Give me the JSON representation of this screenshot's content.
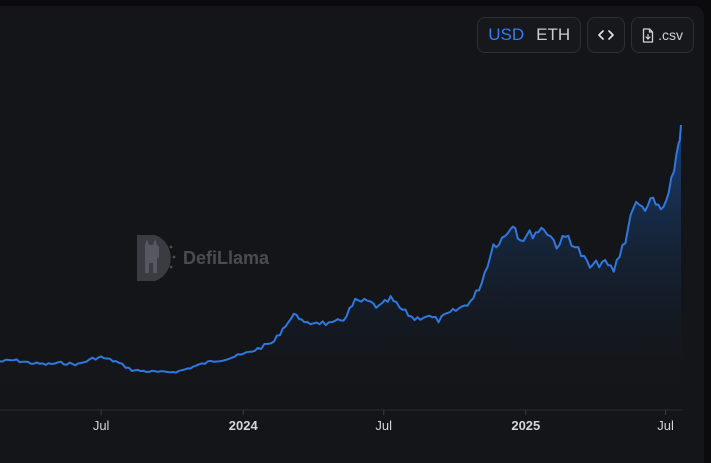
{
  "toolbar": {
    "currency_options": [
      "USD",
      "ETH"
    ],
    "selected_currency": "USD",
    "embed_icon": "code-icon",
    "csv_icon": "file-download-icon",
    "csv_label": ".csv"
  },
  "watermark": {
    "text": "DefiLlama",
    "icon": "llama-logo-icon"
  },
  "colors": {
    "line": "#2f78e0",
    "area_top": "#1a4a8a",
    "area_bottom": "#141518",
    "background": "#141518"
  },
  "chart_data": {
    "type": "area",
    "title": "",
    "xlabel": "",
    "ylabel": "",
    "y_axis_labels": "hidden",
    "x_tick_labels": [
      {
        "label": "Jul",
        "date": "2023-07-01",
        "bold": false
      },
      {
        "label": "2024",
        "date": "2024-01-01",
        "bold": true
      },
      {
        "label": "Jul",
        "date": "2024-07-01",
        "bold": false
      },
      {
        "label": "2025",
        "date": "2025-01-01",
        "bold": true
      },
      {
        "label": "Jul",
        "date": "2025-07-01",
        "bold": false
      }
    ],
    "xlim": [
      "2023-02-20",
      "2025-07-21"
    ],
    "ylim": [
      0,
      100
    ],
    "series": [
      {
        "points": [
          [
            "2023-02-20",
            17
          ],
          [
            "2023-03-10",
            17.5
          ],
          [
            "2023-04-01",
            16.5
          ],
          [
            "2023-04-20",
            16
          ],
          [
            "2023-05-10",
            16.5
          ],
          [
            "2023-06-01",
            16
          ],
          [
            "2023-06-20",
            18
          ],
          [
            "2023-07-01",
            18.5
          ],
          [
            "2023-07-20",
            17
          ],
          [
            "2023-08-10",
            14
          ],
          [
            "2023-09-01",
            13.5
          ],
          [
            "2023-09-20",
            13.2
          ],
          [
            "2023-10-10",
            13.6
          ],
          [
            "2023-11-01",
            15.5
          ],
          [
            "2023-11-20",
            17
          ],
          [
            "2023-12-10",
            18
          ],
          [
            "2024-01-01",
            19.5
          ],
          [
            "2024-01-20",
            21.5
          ],
          [
            "2024-02-10",
            24
          ],
          [
            "2024-02-25",
            30
          ],
          [
            "2024-03-10",
            34
          ],
          [
            "2024-03-20",
            30
          ],
          [
            "2024-04-05",
            31
          ],
          [
            "2024-04-25",
            30
          ],
          [
            "2024-05-10",
            32
          ],
          [
            "2024-05-25",
            38
          ],
          [
            "2024-06-10",
            38
          ],
          [
            "2024-06-25",
            36
          ],
          [
            "2024-07-10",
            39
          ],
          [
            "2024-07-25",
            35
          ],
          [
            "2024-08-10",
            32
          ],
          [
            "2024-08-25",
            33
          ],
          [
            "2024-09-10",
            31.5
          ],
          [
            "2024-09-25",
            34
          ],
          [
            "2024-10-10",
            36
          ],
          [
            "2024-10-25",
            39
          ],
          [
            "2024-11-05",
            45
          ],
          [
            "2024-11-20",
            58
          ],
          [
            "2024-12-05",
            61
          ],
          [
            "2024-12-15",
            66
          ],
          [
            "2024-12-25",
            60
          ],
          [
            "2025-01-10",
            62
          ],
          [
            "2025-01-25",
            64
          ],
          [
            "2025-02-10",
            58
          ],
          [
            "2025-02-25",
            61
          ],
          [
            "2025-03-10",
            56
          ],
          [
            "2025-03-25",
            50
          ],
          [
            "2025-04-10",
            52
          ],
          [
            "2025-04-25",
            49
          ],
          [
            "2025-05-10",
            60
          ],
          [
            "2025-05-20",
            72
          ],
          [
            "2025-06-01",
            71
          ],
          [
            "2025-06-15",
            73
          ],
          [
            "2025-06-25",
            70
          ],
          [
            "2025-07-05",
            74
          ],
          [
            "2025-07-12",
            85
          ],
          [
            "2025-07-18",
            94
          ],
          [
            "2025-07-21",
            100
          ]
        ]
      }
    ],
    "grid": false,
    "legend": "none"
  }
}
